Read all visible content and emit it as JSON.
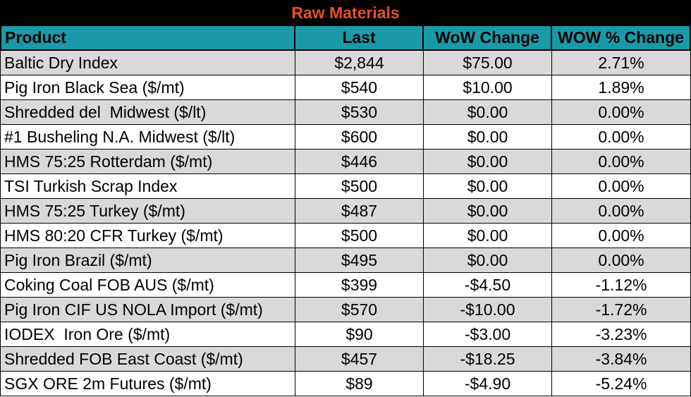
{
  "title": "Raw Materials",
  "colors": {
    "title_bg": "#000000",
    "title_text": "#e8501e",
    "header_bg": "#1a9aa8",
    "shade_row": "#d9d9d9"
  },
  "columns": [
    "Product",
    "Last",
    "WoW Change",
    "WOW % Change"
  ],
  "rows": [
    {
      "product": "Baltic Dry Index",
      "last": "$2,844",
      "wow_change": "$75.00",
      "wow_pct": "2.71%"
    },
    {
      "product": "Pig Iron Black Sea ($/mt)",
      "last": "$540",
      "wow_change": "$10.00",
      "wow_pct": "1.89%"
    },
    {
      "product": "Shredded del  Midwest ($/lt)",
      "last": "$530",
      "wow_change": "$0.00",
      "wow_pct": "0.00%"
    },
    {
      "product": "#1 Busheling N.A. Midwest ($/lt)",
      "last": "$600",
      "wow_change": "$0.00",
      "wow_pct": "0.00%"
    },
    {
      "product": "HMS 75:25 Rotterdam ($/mt)",
      "last": "$446",
      "wow_change": "$0.00",
      "wow_pct": "0.00%"
    },
    {
      "product": "TSI Turkish Scrap Index",
      "last": "$500",
      "wow_change": "$0.00",
      "wow_pct": "0.00%"
    },
    {
      "product": "HMS 75:25 Turkey ($/mt)",
      "last": "$487",
      "wow_change": "$0.00",
      "wow_pct": "0.00%"
    },
    {
      "product": "HMS 80:20 CFR Turkey ($/mt)",
      "last": "$500",
      "wow_change": "$0.00",
      "wow_pct": "0.00%"
    },
    {
      "product": "Pig Iron Brazil ($/mt)",
      "last": "$495",
      "wow_change": "$0.00",
      "wow_pct": "0.00%"
    },
    {
      "product": "Coking Coal FOB AUS ($/mt)",
      "last": "$399",
      "wow_change": "-$4.50",
      "wow_pct": "-1.12%"
    },
    {
      "product": "Pig Iron CIF US NOLA Import ($/mt)",
      "last": "$570",
      "wow_change": "-$10.00",
      "wow_pct": "-1.72%"
    },
    {
      "product": "IODEX  Iron Ore ($/mt)",
      "last": "$90",
      "wow_change": "-$3.00",
      "wow_pct": "-3.23%"
    },
    {
      "product": "Shredded FOB East Coast ($/mt)",
      "last": "$457",
      "wow_change": "-$18.25",
      "wow_pct": "-3.84%"
    },
    {
      "product": "SGX ORE 2m Futures ($/mt)",
      "last": "$89",
      "wow_change": "-$4.90",
      "wow_pct": "-5.24%"
    }
  ]
}
